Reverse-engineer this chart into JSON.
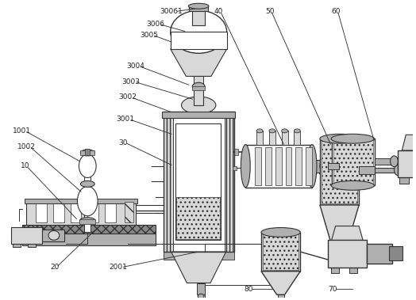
{
  "bg_color": "#ffffff",
  "line_color": "#333333",
  "gray_light": "#d8d8d8",
  "gray_med": "#b0b0b0",
  "gray_dark": "#888888",
  "hatch_gray": "#c0c0c0",
  "figsize": [
    5.24,
    3.79
  ],
  "dpi": 100
}
